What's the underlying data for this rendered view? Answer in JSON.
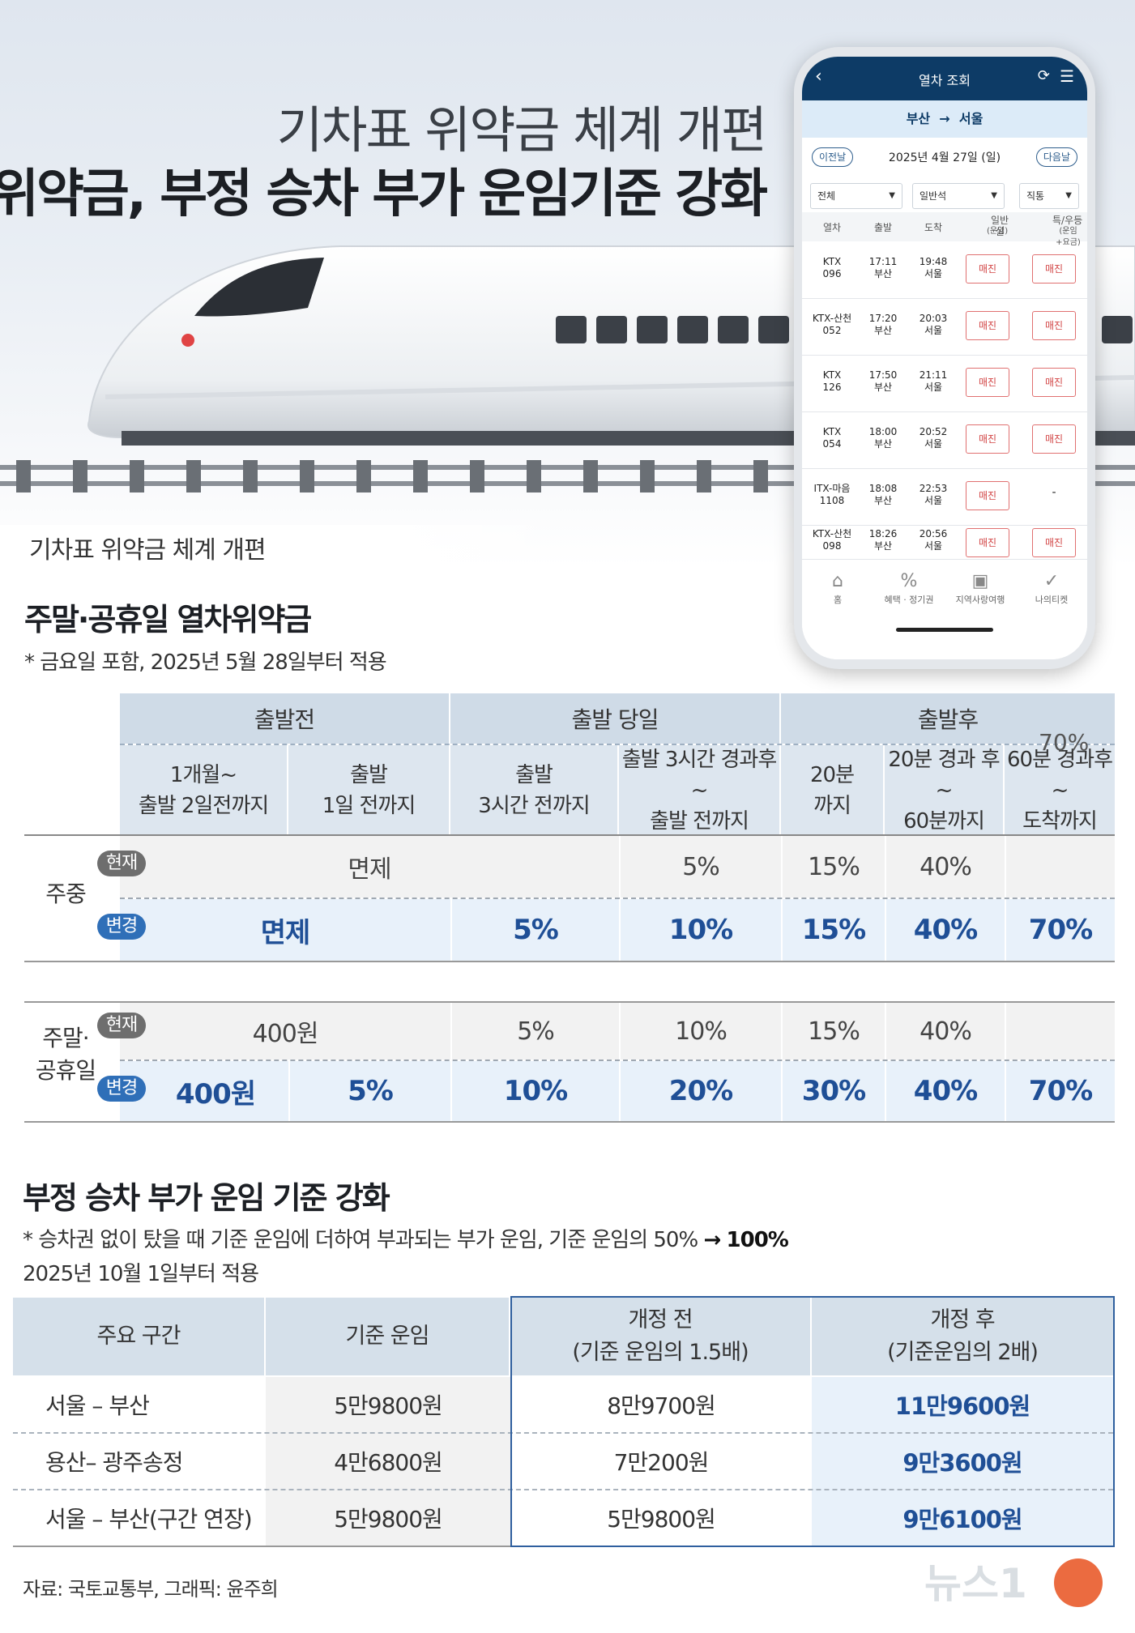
{
  "hero": {
    "title": "기차표 위약금 체계 개편",
    "subtitle": "열차 위약금, 부정 승차 부가 운임기준 강화",
    "section_label": "기차표 위약금 체계 개편"
  },
  "phone": {
    "header_title": "열차 조회",
    "route_from": "부산",
    "route_arrow": "→",
    "route_to": "서울",
    "prev_day": "이전날",
    "date": "2025년 4월 27일 (일)",
    "next_day": "다음날",
    "filter1": "전체",
    "filter2": "일반석",
    "filter3": "직통",
    "col_train": "열차",
    "col_dep": "출발",
    "col_arr": "도착",
    "col_standard": "일반실",
    "col_standard_sub": "(운임)",
    "col_special": "특/우등",
    "col_special_sub": "(운임+요금)",
    "sold_out": "매진",
    "trains": [
      {
        "line1": "KTX",
        "line2": "096",
        "dep_time": "17:11",
        "dep_st": "부산",
        "arr_time": "19:48",
        "arr_st": "서울",
        "special": "매진"
      },
      {
        "line1": "KTX-산천",
        "line2": "052",
        "dep_time": "17:20",
        "dep_st": "부산",
        "arr_time": "20:03",
        "arr_st": "서울",
        "special": "매진"
      },
      {
        "line1": "KTX",
        "line2": "126",
        "dep_time": "17:50",
        "dep_st": "부산",
        "arr_time": "21:11",
        "arr_st": "서울",
        "special": "매진"
      },
      {
        "line1": "KTX",
        "line2": "054",
        "dep_time": "18:00",
        "dep_st": "부산",
        "arr_time": "20:52",
        "arr_st": "서울",
        "special": "매진"
      },
      {
        "line1": "ITX-마음",
        "line2": "1108",
        "dep_time": "18:08",
        "dep_st": "부산",
        "arr_time": "22:53",
        "arr_st": "서울",
        "special": "-"
      },
      {
        "line1": "KTX-산천",
        "line2": "098",
        "dep_time": "18:26",
        "dep_st": "부산",
        "arr_time": "20:56",
        "arr_st": "서울",
        "special": "매진"
      }
    ],
    "nav": [
      "홈",
      "혜택 · 정기권",
      "지역사랑여행",
      "나의티켓"
    ]
  },
  "penalty": {
    "heading": "주말·공휴일 열차위약금",
    "note": "* 금요일 포함, 2025년 5월 28일부터 적용",
    "group_before": "출발전",
    "group_day": "출발 당일",
    "group_after": "출발후",
    "sub": [
      [
        "1개월~",
        "출발 2일전까지"
      ],
      [
        "출발",
        "1일 전까지"
      ],
      [
        "출발",
        "3시간 전까지"
      ],
      [
        "출발 3시간 경과후~",
        "출발 전까지"
      ],
      [
        "20분",
        "까지"
      ],
      [
        "20분 경과 후~",
        "60분까지"
      ],
      [
        "60분 경과후~",
        "도착까지"
      ]
    ],
    "overlap_70": "70%",
    "badge_current": "현재",
    "badge_changed": "변경",
    "weekday_label": "주중",
    "weekday_current": {
      "free": "면제",
      "c4": "5%",
      "c5": "15%",
      "c6": "40%"
    },
    "weekday_new": {
      "free": "면제",
      "c3": "5%",
      "c4": "10%",
      "c5": "15%",
      "c6": "40%",
      "c7": "70%"
    },
    "weekend_label1": "주말·",
    "weekend_label2": "공휴일",
    "weekend_current": {
      "c12": "400원",
      "c3": "5%",
      "c4": "10%",
      "c5": "15%",
      "c6": "40%"
    },
    "weekend_new": {
      "c1": "400원",
      "c2": "5%",
      "c3": "10%",
      "c4": "20%",
      "c5": "30%",
      "c6": "40%",
      "c7": "70%"
    }
  },
  "fare": {
    "heading": "부정 승차 부가 운임 기준 강화",
    "note1": "* 승차권 없이 탔을 때 기준 운임에 더하여 부과되는 부가 운임, 기준 운임의 50%",
    "note1_arrow": "→",
    "note1_bold": "100%",
    "note2": "2025년 10월 1일부터 적용",
    "headers": {
      "route": "주요 구간",
      "base": "기준 운임",
      "before": "개정 전",
      "before_sub": "(기준 운임의 1.5배)",
      "after": "개정 후",
      "after_sub": "(기준운임의 2배)"
    },
    "rows": [
      {
        "route": "서울 – 부산",
        "base": "5만9800원",
        "before": "8만9700원",
        "after": "11만9600원"
      },
      {
        "route": "용산– 광주송정",
        "base": "4만6800원",
        "before": "7만200원",
        "after": "9만3600원"
      },
      {
        "route": "서울 – 부산(구간 연장)",
        "base": "5만9800원",
        "before": "5만9800원",
        "after": "9만6100원"
      }
    ]
  },
  "footer": {
    "source": "자료: 국토교통부,  그래픽: 윤주희",
    "logo_text": "뉴스1"
  }
}
